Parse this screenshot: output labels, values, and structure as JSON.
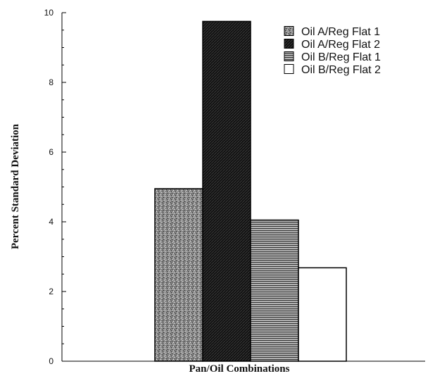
{
  "chart_data": {
    "type": "bar",
    "title": "",
    "xlabel": "Pan/Oil Combinations",
    "ylabel": "Percent Standard Deviation",
    "ylim": [
      0,
      10
    ],
    "yticks": [
      0,
      2,
      4,
      6,
      8,
      10
    ],
    "grid": false,
    "legend_position": "top-right",
    "series": [
      {
        "name": "Oil A/Reg Flat 1",
        "value": 4.95,
        "pattern": "speckle"
      },
      {
        "name": "Oil A/Reg Flat 2",
        "value": 9.75,
        "pattern": "dark-diagonal"
      },
      {
        "name": "Oil B/Reg Flat 1",
        "value": 4.05,
        "pattern": "horizontal-lines"
      },
      {
        "name": "Oil B/Reg Flat 2",
        "value": 2.68,
        "pattern": "empty"
      }
    ]
  }
}
